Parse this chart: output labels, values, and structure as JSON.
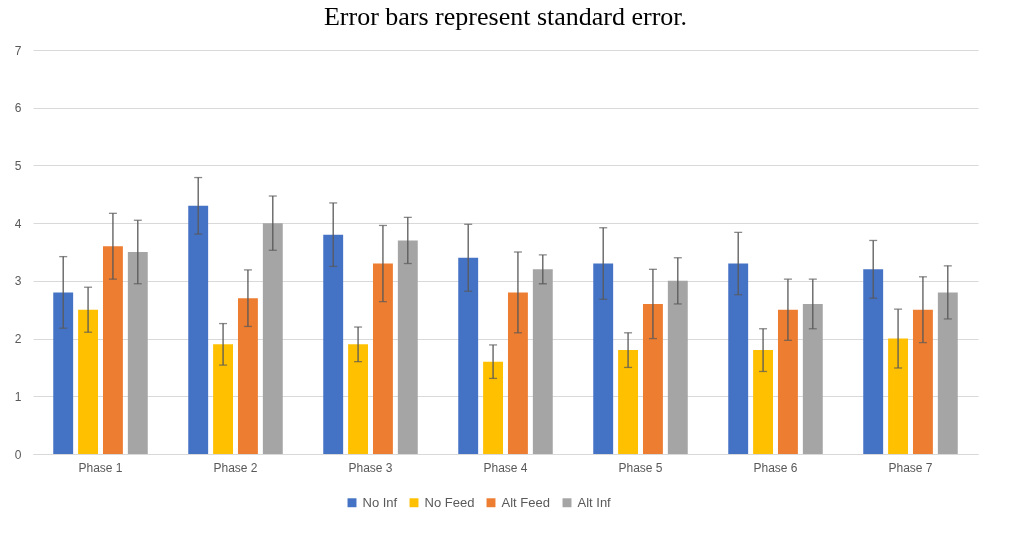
{
  "chart_data": {
    "type": "bar",
    "title": "Error bars represent standard error.",
    "categories": [
      "Phase 1",
      "Phase 2",
      "Phase 3",
      "Phase 4",
      "Phase 5",
      "Phase 6",
      "Phase 7"
    ],
    "series": [
      {
        "name": "No Inf",
        "color": "#4472c4",
        "values": [
          2.8,
          4.3,
          3.8,
          3.4,
          3.3,
          3.3,
          3.2
        ],
        "errors": [
          0.62,
          0.49,
          0.55,
          0.58,
          0.62,
          0.54,
          0.5
        ]
      },
      {
        "name": "No Feed",
        "color": "#ffc000",
        "values": [
          2.5,
          1.9,
          1.9,
          1.6,
          1.8,
          1.8,
          2.0
        ],
        "errors": [
          0.39,
          0.36,
          0.3,
          0.29,
          0.3,
          0.37,
          0.51
        ]
      },
      {
        "name": "Alt Feed",
        "color": "#ed7d31",
        "values": [
          3.6,
          2.7,
          3.3,
          2.8,
          2.6,
          2.5,
          2.5
        ],
        "errors": [
          0.57,
          0.49,
          0.66,
          0.7,
          0.6,
          0.53,
          0.57
        ]
      },
      {
        "name": "Alt Inf",
        "color": "#a5a5a5",
        "values": [
          3.5,
          4.0,
          3.7,
          3.2,
          3.0,
          2.6,
          2.8
        ],
        "errors": [
          0.55,
          0.47,
          0.4,
          0.25,
          0.4,
          0.43,
          0.46
        ]
      }
    ],
    "ylim": [
      0,
      7
    ],
    "yticks": [
      0,
      1,
      2,
      3,
      4,
      5,
      6,
      7
    ],
    "grid": "y",
    "legend": "bottom"
  }
}
